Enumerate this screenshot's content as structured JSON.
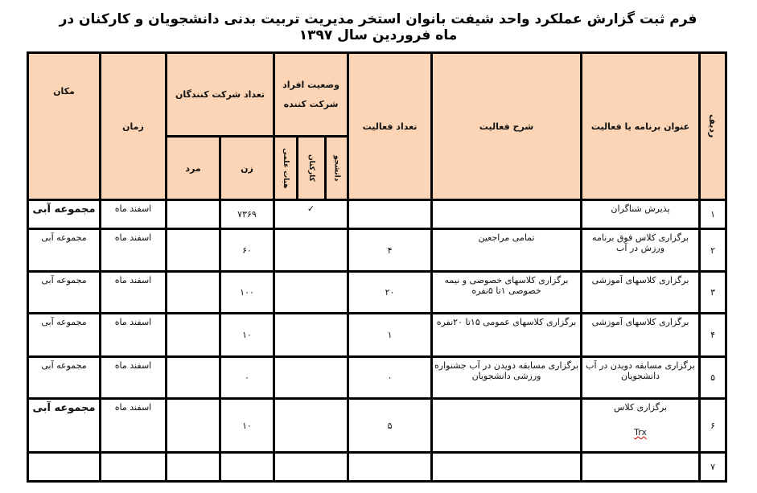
{
  "title": "فرم ثبت گزارش عملکرد واحد  شیفت بانوان استخر  مدیریت تربیت بدنی دانشجویان و کارکنان در ماه فروردین  سال  ۱۳۹۷",
  "headers": {
    "row_no": "ردیف",
    "activity_title": "عنوان برنامه یا فعالیت",
    "description": "شرح فعالیت",
    "activity_count": "تعداد فعالیت",
    "status": "وضعیت افراد شرکت کننده",
    "student": "دانشجو",
    "staff": "کارکنان",
    "faculty": "هیات علمی",
    "participants": "تعداد شرکت کنندگان",
    "female": "زن",
    "male": "مرد",
    "time": "زمان",
    "place": "مکان"
  },
  "rows": [
    {
      "no": "۱",
      "title": "پذیرش شناگران",
      "desc": "",
      "count": "",
      "status": "✓",
      "female": "۷۳۶۹",
      "male": "",
      "time": "اسفند ماه",
      "place": "مجموعه آبی",
      "bold_place": true
    },
    {
      "no": "۲",
      "title": "برگزاری کلاس فوق برنامه ورزش در آب",
      "desc": "تمامی مراجعین",
      "count": "۴",
      "status": "",
      "female": "۶۰",
      "male": "",
      "time": "اسفند ماه",
      "place": "مجموعه آبی"
    },
    {
      "no": "۳",
      "title": "برگزاری کلاسهای آموزشی",
      "desc": "برگزاری کلاسهای خصوصی و نیمه خصوصی ۱تا ۵نفره",
      "count": "۲۰",
      "status": "",
      "female": "۱۰۰",
      "male": "",
      "time": "اسفند ماه",
      "place": "مجموعه آبی"
    },
    {
      "no": "۴",
      "title": "برگزاری کلاسهای آموزشی",
      "desc": "برگزاری کلاسهای عمومی ۱۵تا ۲۰نفره",
      "count": "۱",
      "status": "",
      "female": "۱۰",
      "male": "",
      "time": "اسفند ماه",
      "place": "مجموعه آبی"
    },
    {
      "no": "۵",
      "title": "برگزاری مسابقه دویدن در آب دانشجویان",
      "desc": "برگزاری مسابقه دویدن در آب جشنواره ورزشی دانشجویان",
      "count": "۰",
      "status": "",
      "female": "۰",
      "male": "",
      "time": "اسفند ماه",
      "place": "مجموعه آبی"
    },
    {
      "no": "۶",
      "title": "برگزاری کلاس",
      "title2": "Trx",
      "desc": "",
      "count": "۵",
      "status": "",
      "female": "۱۰",
      "male": "",
      "time": "اسفند ماه",
      "place": "مجموعه آبی",
      "bold_place": true
    },
    {
      "no": "۷",
      "title": "",
      "desc": "",
      "count": "",
      "status": "",
      "female": "",
      "male": "",
      "time": "",
      "place": ""
    }
  ],
  "colors": {
    "header_bg": "#fbd5b5",
    "border": "#000000"
  }
}
